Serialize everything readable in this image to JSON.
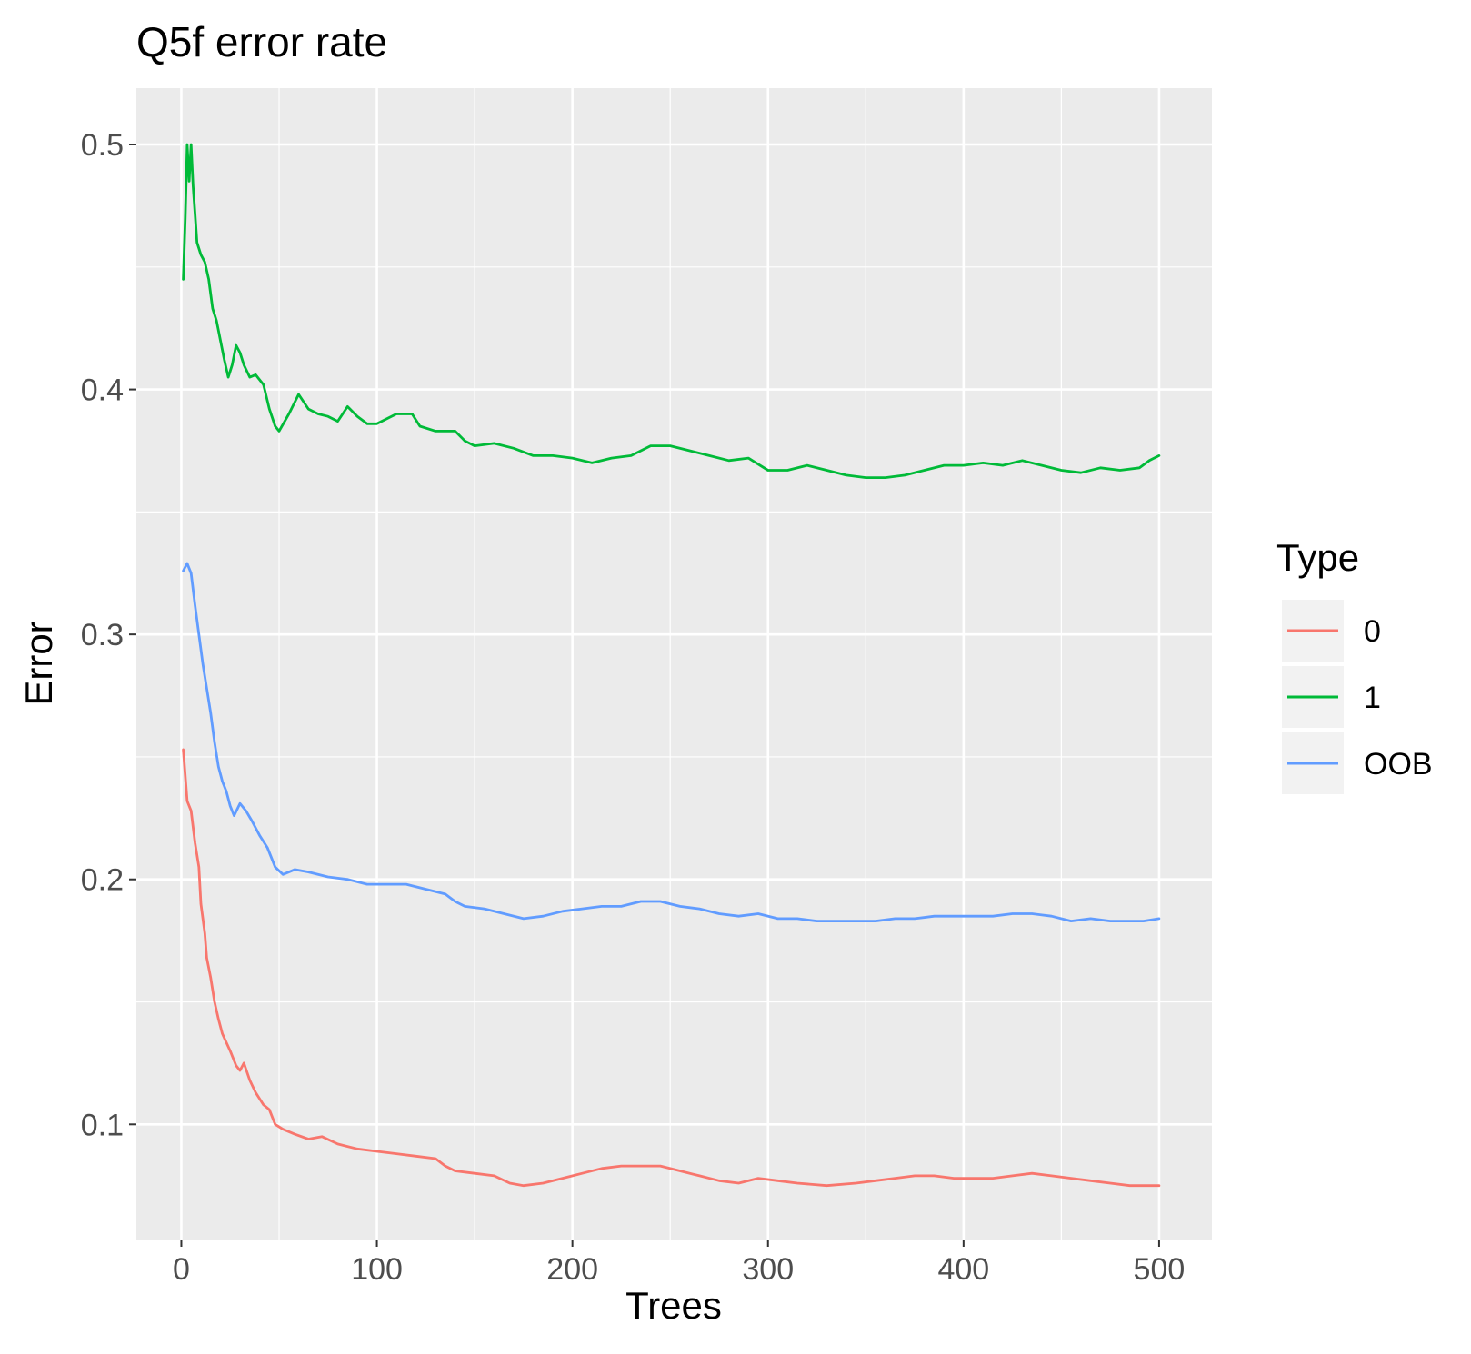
{
  "chart_data": {
    "type": "line",
    "title": "Q5f error rate",
    "xlabel": "Trees",
    "ylabel": "Error",
    "xlim": [
      -23,
      527
    ],
    "ylim": [
      0.053,
      0.523
    ],
    "xticks": [
      0,
      100,
      200,
      300,
      400,
      500
    ],
    "yticks": [
      0.1,
      0.2,
      0.3,
      0.4,
      0.5
    ],
    "xtick_labels": [
      "0",
      "100",
      "200",
      "300",
      "400",
      "500"
    ],
    "ytick_labels": [
      "0.1",
      "0.2",
      "0.3",
      "0.4",
      "0.5"
    ],
    "grid": true,
    "legend": {
      "title": "Type",
      "position": "right"
    },
    "series": [
      {
        "name": "0",
        "color": "#F8766D",
        "points": [
          [
            1,
            0.253
          ],
          [
            3,
            0.232
          ],
          [
            5,
            0.228
          ],
          [
            7,
            0.215
          ],
          [
            9,
            0.205
          ],
          [
            10,
            0.19
          ],
          [
            12,
            0.178
          ],
          [
            13,
            0.168
          ],
          [
            15,
            0.16
          ],
          [
            17,
            0.15
          ],
          [
            19,
            0.143
          ],
          [
            21,
            0.137
          ],
          [
            25,
            0.13
          ],
          [
            28,
            0.124
          ],
          [
            30,
            0.122
          ],
          [
            32,
            0.125
          ],
          [
            35,
            0.118
          ],
          [
            38,
            0.113
          ],
          [
            42,
            0.108
          ],
          [
            45,
            0.106
          ],
          [
            48,
            0.1
          ],
          [
            52,
            0.098
          ],
          [
            58,
            0.096
          ],
          [
            65,
            0.094
          ],
          [
            72,
            0.095
          ],
          [
            80,
            0.092
          ],
          [
            90,
            0.09
          ],
          [
            100,
            0.089
          ],
          [
            110,
            0.088
          ],
          [
            120,
            0.087
          ],
          [
            130,
            0.086
          ],
          [
            135,
            0.083
          ],
          [
            140,
            0.081
          ],
          [
            150,
            0.08
          ],
          [
            160,
            0.079
          ],
          [
            168,
            0.076
          ],
          [
            175,
            0.075
          ],
          [
            185,
            0.076
          ],
          [
            195,
            0.078
          ],
          [
            205,
            0.08
          ],
          [
            215,
            0.082
          ],
          [
            225,
            0.083
          ],
          [
            235,
            0.083
          ],
          [
            245,
            0.083
          ],
          [
            255,
            0.081
          ],
          [
            265,
            0.079
          ],
          [
            275,
            0.077
          ],
          [
            285,
            0.076
          ],
          [
            295,
            0.078
          ],
          [
            305,
            0.077
          ],
          [
            315,
            0.076
          ],
          [
            330,
            0.075
          ],
          [
            345,
            0.076
          ],
          [
            355,
            0.077
          ],
          [
            365,
            0.078
          ],
          [
            375,
            0.079
          ],
          [
            385,
            0.079
          ],
          [
            395,
            0.078
          ],
          [
            405,
            0.078
          ],
          [
            415,
            0.078
          ],
          [
            425,
            0.079
          ],
          [
            435,
            0.08
          ],
          [
            445,
            0.079
          ],
          [
            455,
            0.078
          ],
          [
            465,
            0.077
          ],
          [
            475,
            0.076
          ],
          [
            485,
            0.075
          ],
          [
            492,
            0.075
          ],
          [
            500,
            0.075
          ]
        ]
      },
      {
        "name": "1",
        "color": "#00BA38",
        "points": [
          [
            1,
            0.445
          ],
          [
            2,
            0.47
          ],
          [
            3,
            0.5
          ],
          [
            4,
            0.485
          ],
          [
            5,
            0.5
          ],
          [
            6,
            0.483
          ],
          [
            7,
            0.472
          ],
          [
            8,
            0.46
          ],
          [
            10,
            0.455
          ],
          [
            12,
            0.452
          ],
          [
            14,
            0.445
          ],
          [
            16,
            0.433
          ],
          [
            18,
            0.428
          ],
          [
            20,
            0.42
          ],
          [
            22,
            0.412
          ],
          [
            24,
            0.405
          ],
          [
            26,
            0.41
          ],
          [
            28,
            0.418
          ],
          [
            30,
            0.415
          ],
          [
            32,
            0.41
          ],
          [
            35,
            0.405
          ],
          [
            38,
            0.406
          ],
          [
            42,
            0.402
          ],
          [
            45,
            0.392
          ],
          [
            48,
            0.385
          ],
          [
            50,
            0.383
          ],
          [
            55,
            0.39
          ],
          [
            60,
            0.398
          ],
          [
            65,
            0.392
          ],
          [
            70,
            0.39
          ],
          [
            75,
            0.389
          ],
          [
            80,
            0.387
          ],
          [
            85,
            0.393
          ],
          [
            90,
            0.389
          ],
          [
            95,
            0.386
          ],
          [
            100,
            0.386
          ],
          [
            110,
            0.39
          ],
          [
            118,
            0.39
          ],
          [
            122,
            0.385
          ],
          [
            130,
            0.383
          ],
          [
            140,
            0.383
          ],
          [
            145,
            0.379
          ],
          [
            150,
            0.377
          ],
          [
            160,
            0.378
          ],
          [
            170,
            0.376
          ],
          [
            180,
            0.373
          ],
          [
            190,
            0.373
          ],
          [
            200,
            0.372
          ],
          [
            210,
            0.37
          ],
          [
            220,
            0.372
          ],
          [
            230,
            0.373
          ],
          [
            240,
            0.377
          ],
          [
            250,
            0.377
          ],
          [
            260,
            0.375
          ],
          [
            270,
            0.373
          ],
          [
            280,
            0.371
          ],
          [
            290,
            0.372
          ],
          [
            300,
            0.367
          ],
          [
            310,
            0.367
          ],
          [
            320,
            0.369
          ],
          [
            330,
            0.367
          ],
          [
            340,
            0.365
          ],
          [
            350,
            0.364
          ],
          [
            360,
            0.364
          ],
          [
            370,
            0.365
          ],
          [
            380,
            0.367
          ],
          [
            390,
            0.369
          ],
          [
            400,
            0.369
          ],
          [
            410,
            0.37
          ],
          [
            420,
            0.369
          ],
          [
            430,
            0.371
          ],
          [
            440,
            0.369
          ],
          [
            450,
            0.367
          ],
          [
            460,
            0.366
          ],
          [
            470,
            0.368
          ],
          [
            480,
            0.367
          ],
          [
            490,
            0.368
          ],
          [
            495,
            0.371
          ],
          [
            500,
            0.373
          ]
        ]
      },
      {
        "name": "OOB",
        "color": "#619CFF",
        "points": [
          [
            1,
            0.326
          ],
          [
            3,
            0.329
          ],
          [
            5,
            0.325
          ],
          [
            7,
            0.312
          ],
          [
            9,
            0.3
          ],
          [
            11,
            0.288
          ],
          [
            13,
            0.278
          ],
          [
            15,
            0.268
          ],
          [
            17,
            0.256
          ],
          [
            19,
            0.246
          ],
          [
            21,
            0.24
          ],
          [
            23,
            0.236
          ],
          [
            25,
            0.23
          ],
          [
            27,
            0.226
          ],
          [
            30,
            0.231
          ],
          [
            33,
            0.228
          ],
          [
            36,
            0.224
          ],
          [
            40,
            0.218
          ],
          [
            44,
            0.213
          ],
          [
            48,
            0.205
          ],
          [
            52,
            0.202
          ],
          [
            58,
            0.204
          ],
          [
            65,
            0.203
          ],
          [
            75,
            0.201
          ],
          [
            85,
            0.2
          ],
          [
            95,
            0.198
          ],
          [
            105,
            0.198
          ],
          [
            115,
            0.198
          ],
          [
            125,
            0.196
          ],
          [
            135,
            0.194
          ],
          [
            140,
            0.191
          ],
          [
            145,
            0.189
          ],
          [
            155,
            0.188
          ],
          [
            165,
            0.186
          ],
          [
            175,
            0.184
          ],
          [
            185,
            0.185
          ],
          [
            195,
            0.187
          ],
          [
            205,
            0.188
          ],
          [
            215,
            0.189
          ],
          [
            225,
            0.189
          ],
          [
            235,
            0.191
          ],
          [
            245,
            0.191
          ],
          [
            255,
            0.189
          ],
          [
            265,
            0.188
          ],
          [
            275,
            0.186
          ],
          [
            285,
            0.185
          ],
          [
            295,
            0.186
          ],
          [
            305,
            0.184
          ],
          [
            315,
            0.184
          ],
          [
            325,
            0.183
          ],
          [
            335,
            0.183
          ],
          [
            345,
            0.183
          ],
          [
            355,
            0.183
          ],
          [
            365,
            0.184
          ],
          [
            375,
            0.184
          ],
          [
            385,
            0.185
          ],
          [
            395,
            0.185
          ],
          [
            405,
            0.185
          ],
          [
            415,
            0.185
          ],
          [
            425,
            0.186
          ],
          [
            435,
            0.186
          ],
          [
            445,
            0.185
          ],
          [
            455,
            0.183
          ],
          [
            465,
            0.184
          ],
          [
            475,
            0.183
          ],
          [
            485,
            0.183
          ],
          [
            492,
            0.183
          ],
          [
            500,
            0.184
          ]
        ]
      }
    ]
  }
}
